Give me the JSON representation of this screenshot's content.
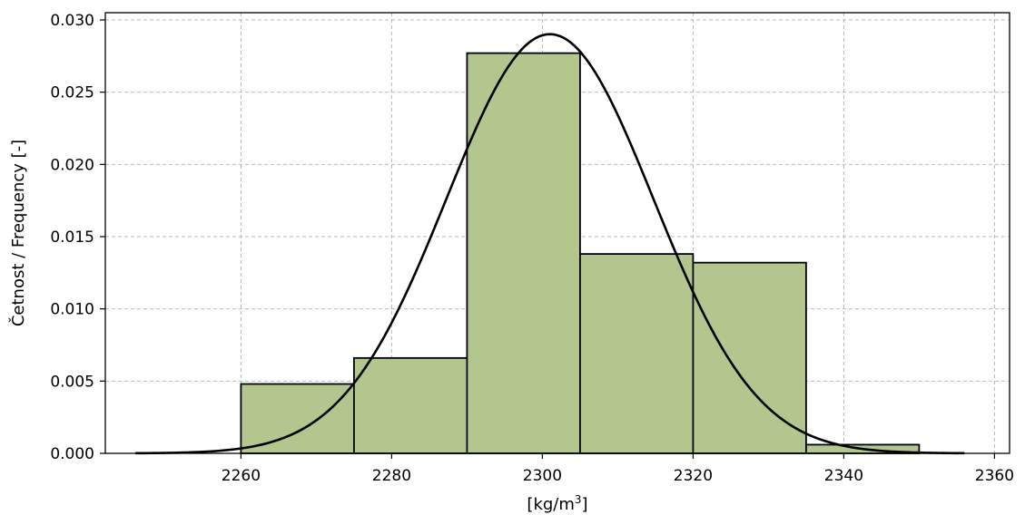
{
  "chart_data": {
    "type": "bar",
    "histogram": {
      "bins": [
        {
          "x0": 2260,
          "x1": 2275,
          "value": 0.0048
        },
        {
          "x0": 2275,
          "x1": 2290,
          "value": 0.0066
        },
        {
          "x0": 2290,
          "x1": 2305,
          "value": 0.0277
        },
        {
          "x0": 2305,
          "x1": 2320,
          "value": 0.0138
        },
        {
          "x0": 2320,
          "x1": 2335,
          "value": 0.0132
        },
        {
          "x0": 2335,
          "x1": 2350,
          "value": 0.0006
        }
      ],
      "color": "#b3c68d",
      "edgecolor": "#000000"
    },
    "curve": {
      "type": "normal-pdf",
      "mean": 2301,
      "std": 13.75,
      "x_range": [
        2246,
        2356
      ],
      "color": "#000000"
    },
    "xlim": [
      2242,
      2362
    ],
    "ylim": [
      0,
      0.0305
    ],
    "xticks": [
      2260,
      2280,
      2300,
      2320,
      2340,
      2360
    ],
    "yticks": [
      0.0,
      0.005,
      0.01,
      0.015,
      0.02,
      0.025,
      0.03
    ],
    "ytick_labels": [
      "0.000",
      "0.005",
      "0.010",
      "0.015",
      "0.020",
      "0.025",
      "0.030"
    ],
    "xlabel_base": "[kg/m",
    "xlabel_sup": "3",
    "xlabel_end": "]",
    "ylabel": "Četnost / Frequency [-]",
    "grid": true
  }
}
